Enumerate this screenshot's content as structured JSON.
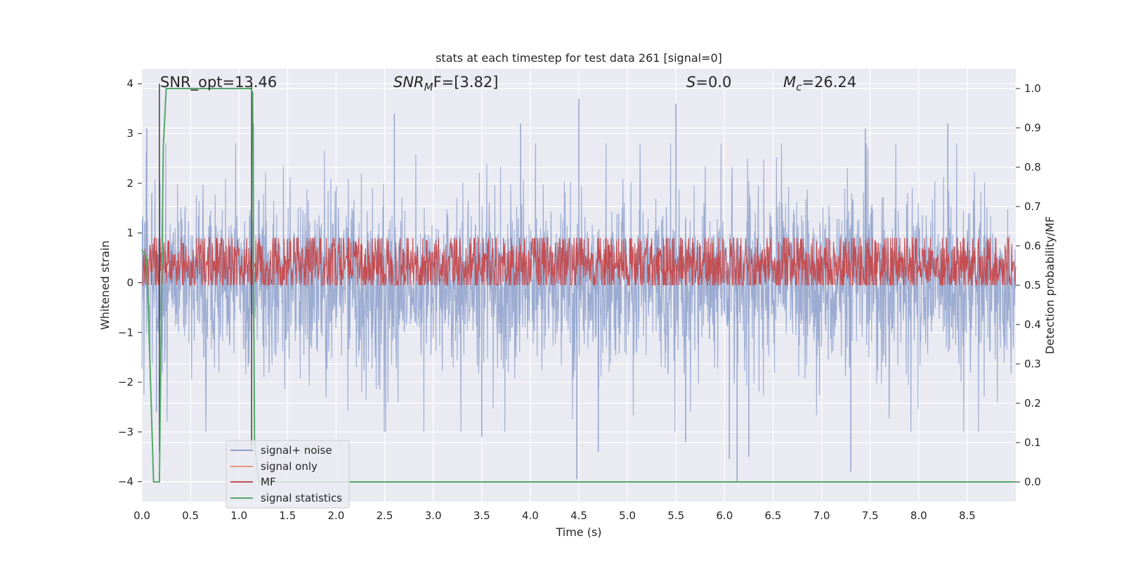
{
  "chart_data": {
    "type": "line",
    "title": "stats at each timestep for test data 261 [signal=0]",
    "xlabel": "Time (s)",
    "ylabel": "Whitened strain",
    "y2label": "Detection probability/MF",
    "xlim": [
      0.0,
      9.0
    ],
    "ylim": [
      -4.4,
      4.3
    ],
    "y2lim": [
      -0.05,
      1.05
    ],
    "xticks": [
      0.0,
      0.5,
      1.0,
      1.5,
      2.0,
      2.5,
      3.0,
      3.5,
      4.0,
      4.5,
      5.0,
      5.5,
      6.0,
      6.5,
      7.0,
      7.5,
      8.0,
      8.5
    ],
    "xtick_labels": [
      "0.0",
      "0.5",
      "1.0",
      "1.5",
      "2.0",
      "2.5",
      "3.0",
      "3.5",
      "4.0",
      "4.5",
      "5.0",
      "5.5",
      "6.0",
      "6.5",
      "7.0",
      "7.5",
      "8.0",
      "8.5"
    ],
    "yticks": [
      4,
      3,
      2,
      1,
      0,
      -1,
      -2,
      -3,
      -4
    ],
    "ytick_labels": [
      "4",
      "3",
      "2",
      "1",
      "0",
      "−1",
      "−2",
      "−3",
      "−4"
    ],
    "y2ticks": [
      1.0,
      0.9,
      0.8,
      0.7,
      0.6,
      0.5,
      0.4,
      0.3,
      0.2,
      0.1,
      0.0
    ],
    "y2tick_labels": [
      "1.0",
      "0.9",
      "0.8",
      "0.7",
      "0.6",
      "0.5",
      "0.4",
      "0.3",
      "0.2",
      "0.1",
      "0.0"
    ],
    "annotations": {
      "snr_opt": "SNR_opt=13.46",
      "snr_mf_prefix": "SNR",
      "snr_mf_sub": "M",
      "snr_mf_suffix": "F=[3.82]",
      "s_prefix": "S",
      "s_suffix": "=0.0",
      "mc_prefix": "M",
      "mc_sub": "c",
      "mc_suffix": "=26.24"
    },
    "vlines": [
      0.18,
      1.13
    ],
    "series": [
      {
        "name": "signal+ noise",
        "color": "#8da0cb",
        "axis": "left",
        "noise_level": 0.85,
        "peaks": [
          [
            0.05,
            3.1
          ],
          [
            0.15,
            -2.6
          ],
          [
            1.15,
            3.2
          ],
          [
            2.6,
            3.4
          ],
          [
            3.5,
            -3.1
          ],
          [
            3.9,
            3.2
          ],
          [
            4.5,
            3.7
          ],
          [
            4.48,
            -3.95
          ],
          [
            4.7,
            -3.4
          ],
          [
            5.5,
            3.6
          ],
          [
            5.6,
            -3.2
          ],
          [
            6.05,
            -3.55
          ],
          [
            6.13,
            -4.0
          ],
          [
            6.25,
            -3.5
          ],
          [
            7.3,
            -3.8
          ],
          [
            7.45,
            3.1
          ],
          [
            8.3,
            3.2
          ]
        ]
      },
      {
        "name": "signal only",
        "color": "#e9967a",
        "axis": "left",
        "values": []
      },
      {
        "name": "MF",
        "color": "#c44e52",
        "axis": "right",
        "base": 0.55,
        "amplitude": 0.09
      },
      {
        "name": "signal statistics",
        "color": "#55a868",
        "axis": "right",
        "x": [
          0.0,
          0.05,
          0.12,
          0.18,
          0.22,
          0.25,
          1.08,
          1.12,
          1.14,
          1.16,
          1.2,
          9.0
        ],
        "values": [
          0.59,
          0.57,
          0.0,
          0.0,
          0.85,
          1.0,
          1.0,
          1.0,
          0.99,
          0.1,
          0.0,
          0.0
        ]
      }
    ],
    "legend": {
      "placement": "lower-left",
      "entries": [
        "signal+ noise",
        "signal only",
        "MF",
        "signal statistics"
      ]
    },
    "colors": {
      "plot_bg": "#eaeaf2",
      "grid": "#ffffff",
      "noise": "#8da0cb",
      "signal_only": "#e9967a",
      "mf": "#c44e52",
      "stats": "#55a868",
      "vline": "#404040"
    }
  }
}
